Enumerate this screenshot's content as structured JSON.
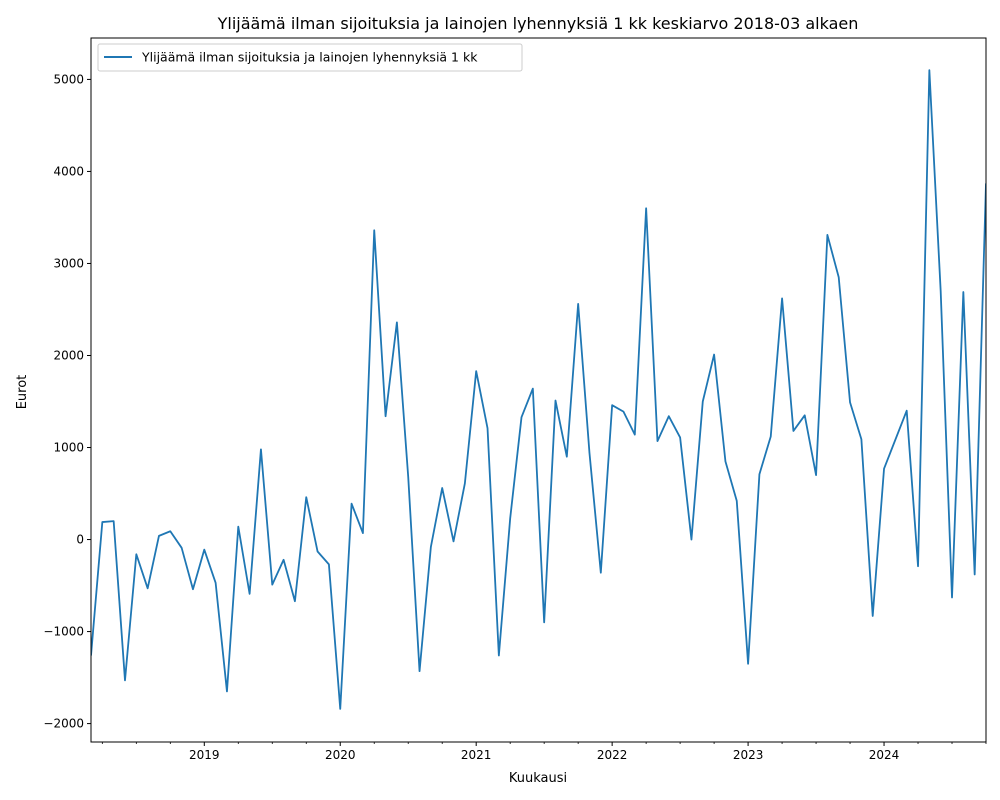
{
  "chart_data": {
    "type": "line",
    "title": "Ylijäämä ilman sijoituksia ja lainojen lyhennyksiä 1 kk keskiarvo 2018-03 alkaen",
    "xlabel": "Kuukausi",
    "ylabel": "Eurot",
    "ylim": [
      -2200,
      5450
    ],
    "xlim": [
      "2018-03",
      "2024-10"
    ],
    "y_ticks": [
      -2000,
      -1000,
      0,
      1000,
      2000,
      3000,
      4000,
      5000
    ],
    "y_tick_labels": [
      "−2000",
      "−1000",
      "0",
      "1000",
      "2000",
      "3000",
      "4000",
      "5000"
    ],
    "x_ticks": [
      "2019",
      "2020",
      "2021",
      "2022",
      "2023",
      "2024"
    ],
    "legend": {
      "placement": "top-left"
    },
    "grid": false,
    "series": [
      {
        "name": "Ylijäämä ilman sijoituksia ja lainojen lyhennyksiä 1 kk",
        "color": "#1f77b4",
        "points": [
          [
            "2018-03",
            -1260
          ],
          [
            "2018-04",
            190
          ],
          [
            "2018-05",
            200
          ],
          [
            "2018-06",
            -1530
          ],
          [
            "2018-07",
            -160
          ],
          [
            "2018-08",
            -530
          ],
          [
            "2018-09",
            40
          ],
          [
            "2018-10",
            90
          ],
          [
            "2018-11",
            -90
          ],
          [
            "2018-12",
            -540
          ],
          [
            "2019-01",
            -110
          ],
          [
            "2019-02",
            -470
          ],
          [
            "2019-03",
            -1650
          ],
          [
            "2019-04",
            140
          ],
          [
            "2019-05",
            -590
          ],
          [
            "2019-06",
            980
          ],
          [
            "2019-07",
            -490
          ],
          [
            "2019-08",
            -220
          ],
          [
            "2019-09",
            -670
          ],
          [
            "2019-10",
            460
          ],
          [
            "2019-11",
            -130
          ],
          [
            "2019-12",
            -270
          ],
          [
            "2020-01",
            -1840
          ],
          [
            "2020-02",
            390
          ],
          [
            "2020-03",
            70
          ],
          [
            "2020-04",
            3360
          ],
          [
            "2020-05",
            1340
          ],
          [
            "2020-06",
            2360
          ],
          [
            "2020-07",
            680
          ],
          [
            "2020-08",
            -1430
          ],
          [
            "2020-09",
            -80
          ],
          [
            "2020-10",
            560
          ],
          [
            "2020-11",
            -20
          ],
          [
            "2020-12",
            610
          ],
          [
            "2021-01",
            1830
          ],
          [
            "2021-02",
            1210
          ],
          [
            "2021-03",
            -1260
          ],
          [
            "2021-04",
            230
          ],
          [
            "2021-05",
            1330
          ],
          [
            "2021-06",
            1640
          ],
          [
            "2021-07",
            -900
          ],
          [
            "2021-08",
            1510
          ],
          [
            "2021-09",
            900
          ],
          [
            "2021-10",
            2560
          ],
          [
            "2021-11",
            940
          ],
          [
            "2021-12",
            -360
          ],
          [
            "2022-01",
            1460
          ],
          [
            "2022-02",
            1390
          ],
          [
            "2022-03",
            1140
          ],
          [
            "2022-04",
            3600
          ],
          [
            "2022-05",
            1070
          ],
          [
            "2022-06",
            1340
          ],
          [
            "2022-07",
            1110
          ],
          [
            "2022-08",
            0
          ],
          [
            "2022-09",
            1500
          ],
          [
            "2022-10",
            2010
          ],
          [
            "2022-11",
            850
          ],
          [
            "2022-12",
            420
          ],
          [
            "2023-01",
            -1350
          ],
          [
            "2023-02",
            710
          ],
          [
            "2023-03",
            1120
          ],
          [
            "2023-04",
            2620
          ],
          [
            "2023-05",
            1180
          ],
          [
            "2023-06",
            1350
          ],
          [
            "2023-07",
            700
          ],
          [
            "2023-08",
            3310
          ],
          [
            "2023-09",
            2850
          ],
          [
            "2023-10",
            1490
          ],
          [
            "2023-11",
            1090
          ],
          [
            "2023-12",
            -830
          ],
          [
            "2024-01",
            770
          ],
          [
            "2024-03",
            1400
          ],
          [
            "2024-04",
            -290
          ],
          [
            "2024-05",
            5100
          ],
          [
            "2024-06",
            2700
          ],
          [
            "2024-07",
            -630
          ],
          [
            "2024-08",
            2690
          ],
          [
            "2024-09",
            -380
          ],
          [
            "2024-10",
            3870
          ]
        ]
      }
    ]
  }
}
